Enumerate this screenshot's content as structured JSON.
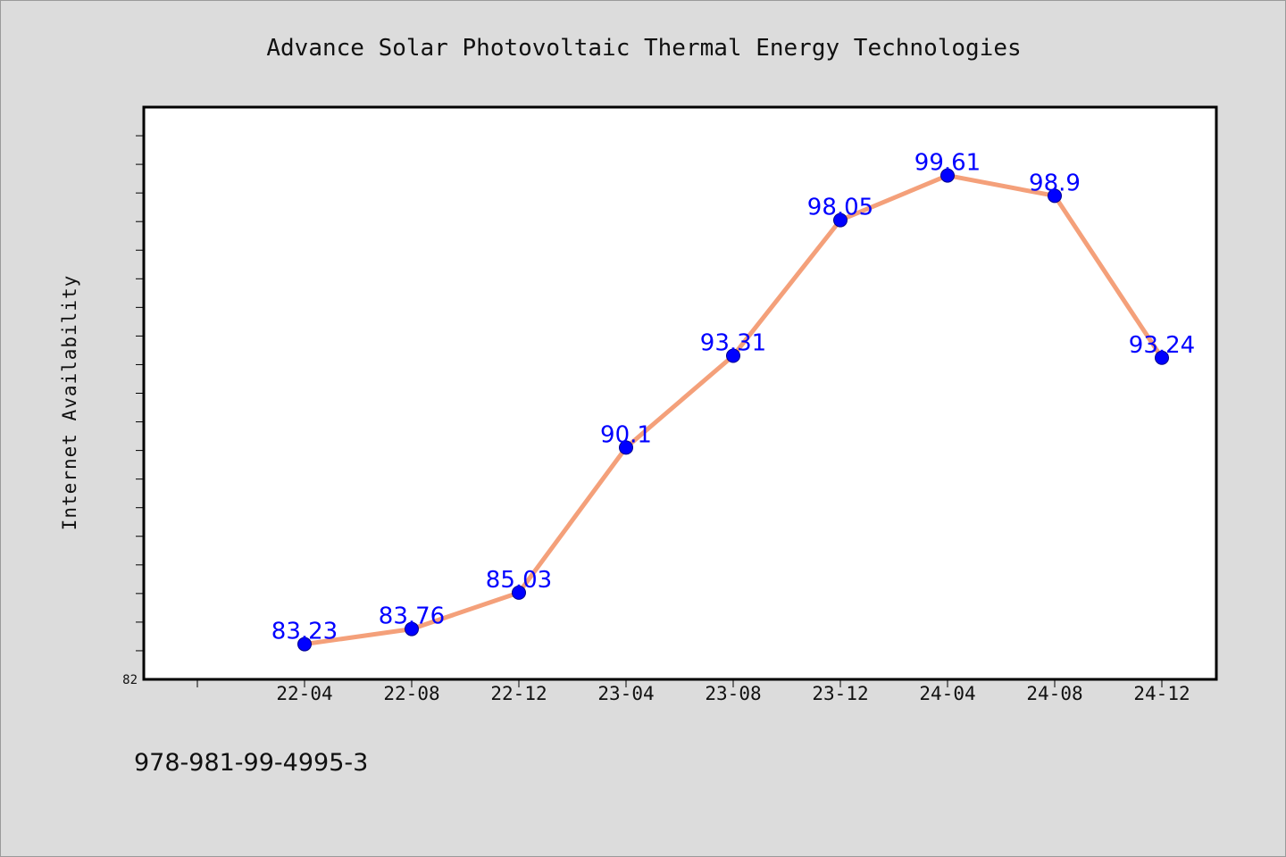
{
  "chart_data": {
    "type": "line",
    "title": "Advance Solar Photovoltaic Thermal Energy Technologies",
    "xlabel": "",
    "ylabel": "Internet Availability",
    "categories": [
      "22-04",
      "22-08",
      "22-12",
      "23-04",
      "23-08",
      "23-12",
      "24-04",
      "24-08",
      "24-12"
    ],
    "series": [
      {
        "values": [
          83.23,
          83.76,
          85.03,
          90.1,
          93.31,
          98.05,
          99.61,
          98.9,
          93.24
        ]
      }
    ],
    "ylim": [
      82,
      102
    ],
    "y_tick_label": "82",
    "grid": false,
    "legend": "none",
    "colors": {
      "line": "#f4a07a",
      "marker": "#0000ff",
      "label": "#0000ff",
      "frame": "#000000",
      "plot_bg": "#ffffff",
      "figure_bg": "#dcdcdc"
    }
  },
  "footer": {
    "isbn": "978-981-99-4995-3"
  }
}
